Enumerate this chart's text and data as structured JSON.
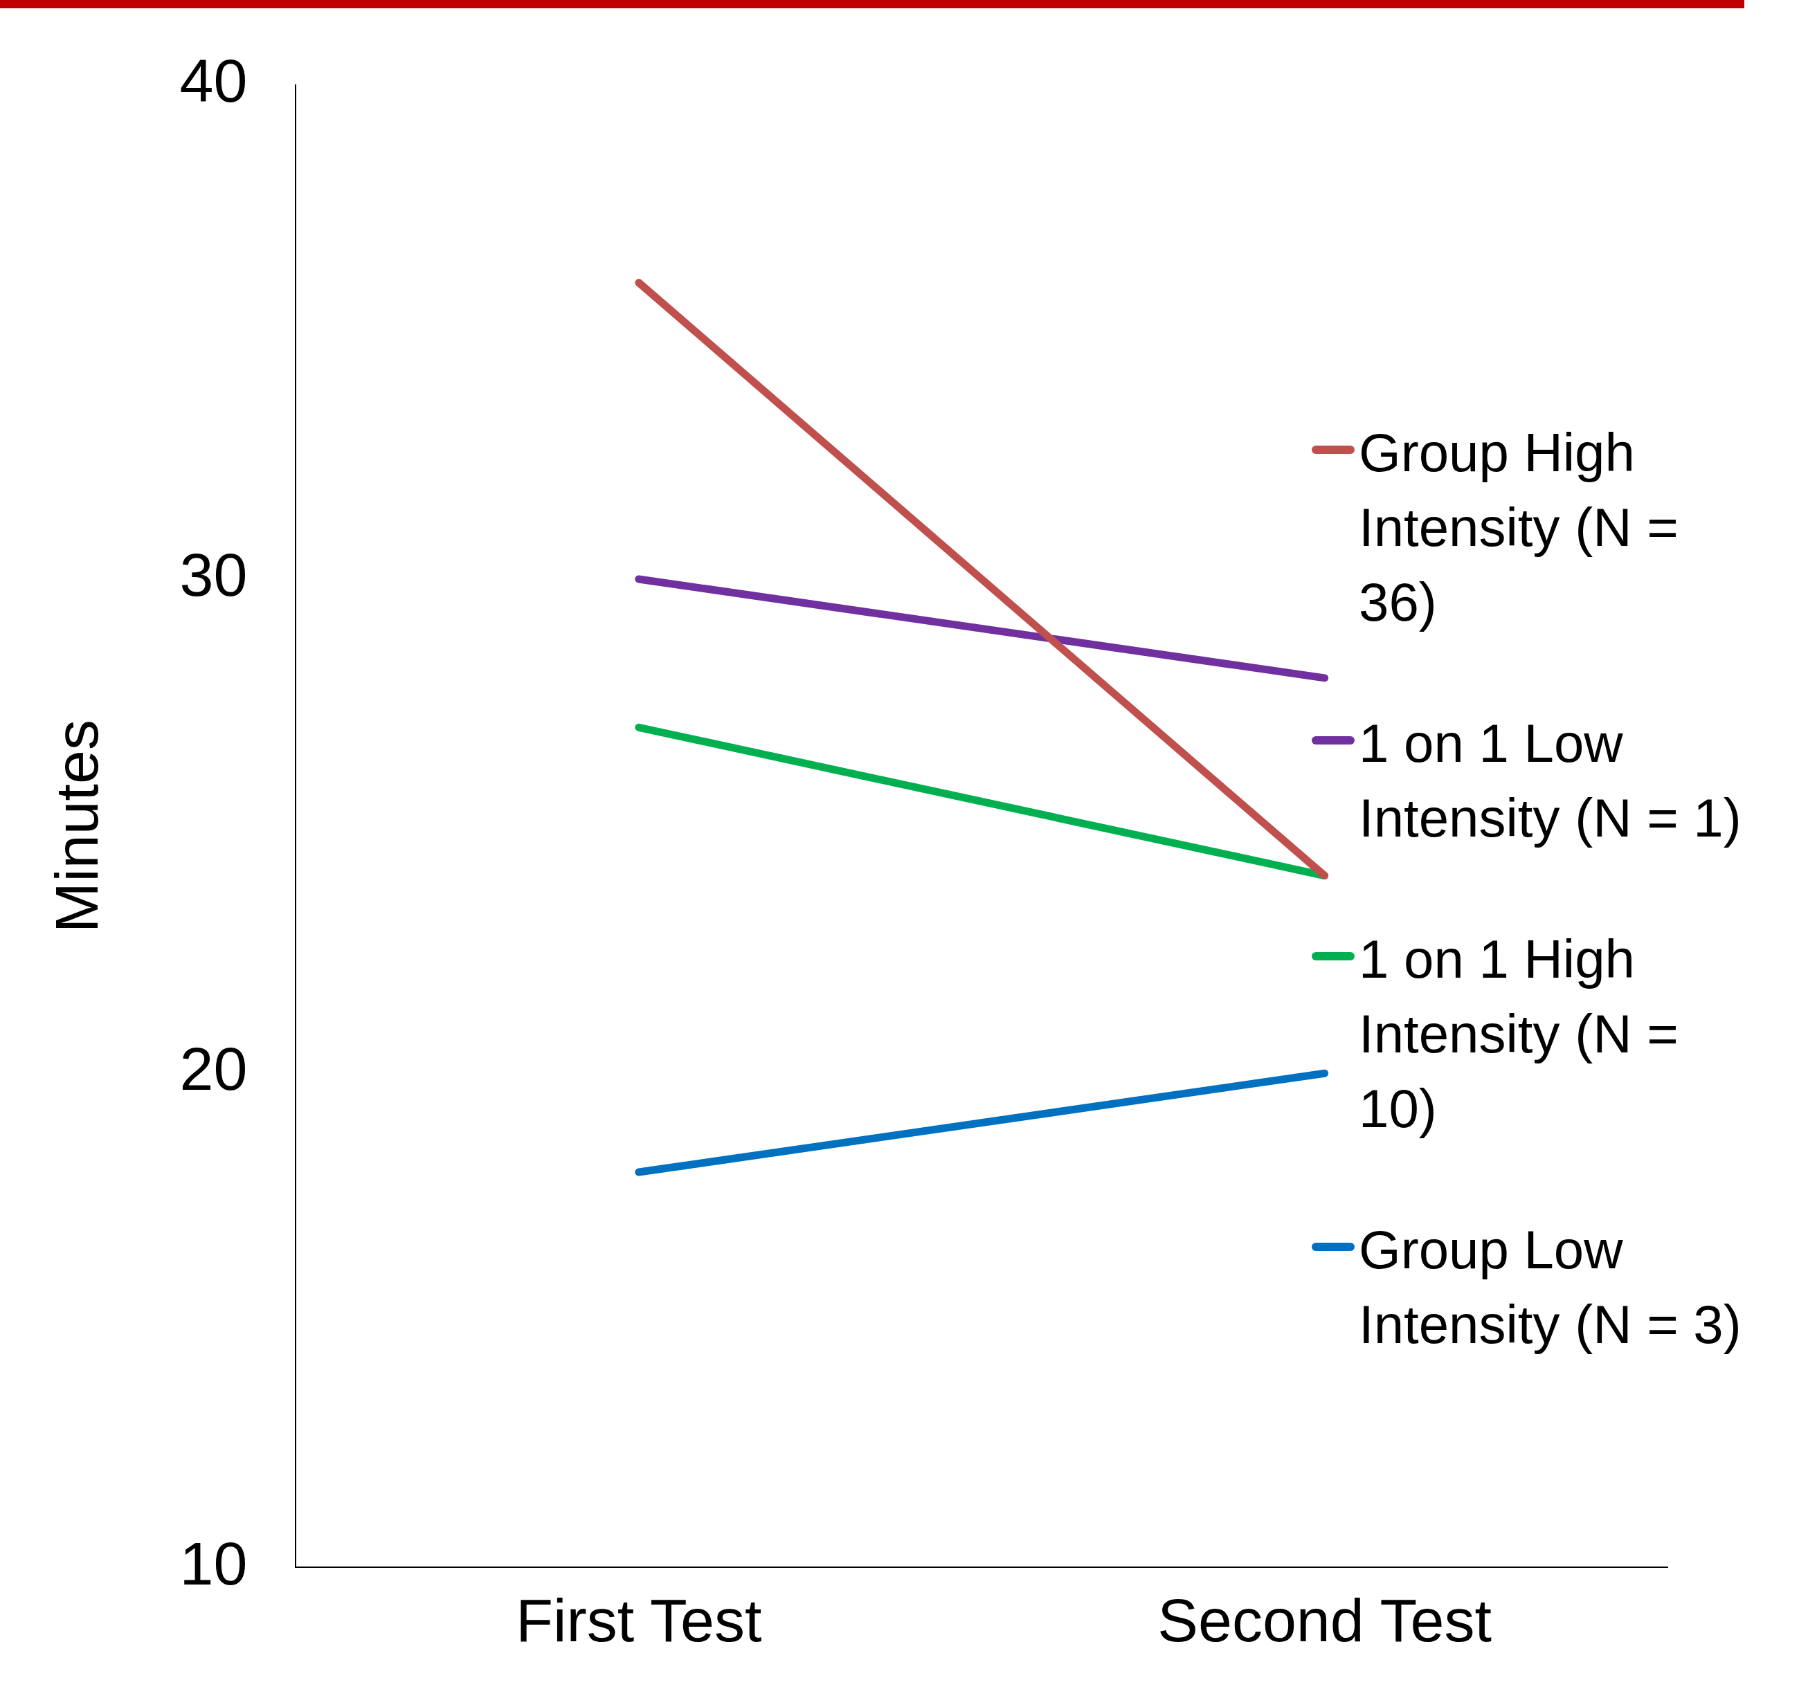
{
  "chart_data": {
    "type": "line",
    "ylabel": "Minutes",
    "categories": [
      "First Test",
      "Second Test"
    ],
    "series": [
      {
        "name": "Group High Intensity (N = 36)",
        "color": "#c0504d",
        "values": [
          36,
          24
        ]
      },
      {
        "name": "1 on 1 Low Intensity (N = 1)",
        "color": "#7030a0",
        "values": [
          30,
          28
        ]
      },
      {
        "name": "1 on 1 High Intensity (N = 10)",
        "color": "#00b050",
        "values": [
          27,
          24
        ]
      },
      {
        "name": "Group Low Intensity (N = 3)",
        "color": "#0070c0",
        "values": [
          18,
          20
        ]
      }
    ],
    "ylim": [
      10,
      40
    ],
    "yticks": [
      10,
      20,
      30,
      40
    ],
    "legend": "right",
    "marker": "none",
    "line_style": "solid"
  }
}
